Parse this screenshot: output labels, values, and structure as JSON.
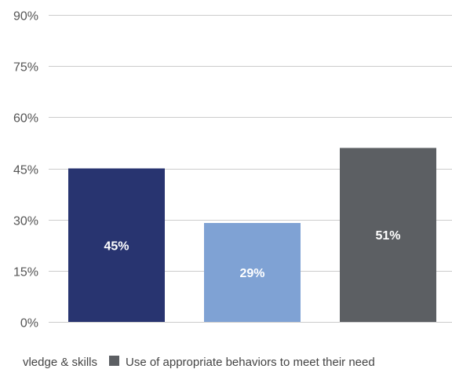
{
  "chart_data": {
    "type": "bar",
    "categories": [
      "",
      "",
      ""
    ],
    "values": [
      45,
      29,
      51
    ],
    "data_labels": [
      "45%",
      "29%",
      "51%"
    ],
    "colors": [
      "#283470",
      "#7fa2d4",
      "#5c5f63"
    ],
    "ylim": [
      0,
      90
    ],
    "yticks": [
      0,
      15,
      30,
      45,
      60,
      75,
      90
    ],
    "ytick_labels": [
      "0%",
      "15%",
      "30%",
      "45%",
      "60%",
      "75%",
      "90%"
    ],
    "grid": true,
    "legend_position": "bottom",
    "legend": [
      {
        "label": "vledge & skills",
        "color": "#283470"
      },
      {
        "label": "Use of appropriate behaviors to meet their need",
        "color": "#5c5f63"
      }
    ]
  }
}
